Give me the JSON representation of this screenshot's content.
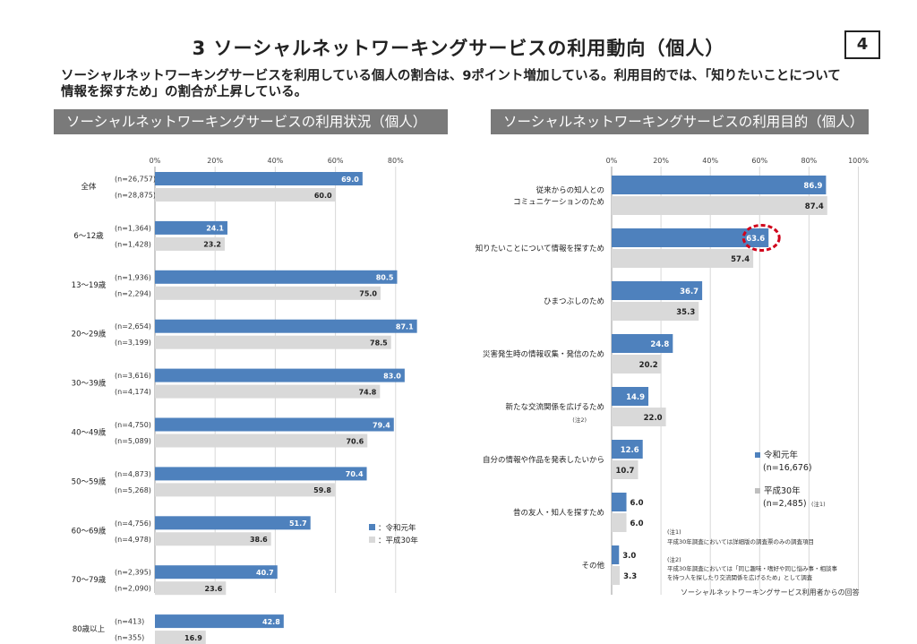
{
  "page": {
    "title": "3 ソーシャルネットワーキングサービスの利用動向（個人）",
    "page_number": "4",
    "summary_line1": "ソーシャルネットワーキングサービスを利用している個人の割合は、9ポイント増加している。利用目的では、「知りたいことについて",
    "summary_line2": "情報を探すため」の割合が上昇している。"
  },
  "colors": {
    "series_reiwa": "#4e81bd",
    "series_heisei": "#d9d9d9",
    "highlight": "#d0021b"
  },
  "chart_data": [
    {
      "type": "bar",
      "title": "ソーシャルネットワーキングサービスの利用状況（個人）",
      "orientation": "horizontal",
      "xlim": [
        0,
        90
      ],
      "x_ticks": [
        "0%",
        "20%",
        "40%",
        "60%",
        "80%"
      ],
      "grid": true,
      "legend_position": "bottom-right",
      "categories": [
        "全体",
        "6～12歳",
        "13～19歳",
        "20～29歳",
        "30～39歳",
        "40～49歳",
        "50～59歳",
        "60～69歳",
        "70～79歳",
        "80歳以上"
      ],
      "series": [
        {
          "name": "：令和元年",
          "values": [
            69.0,
            24.1,
            80.5,
            87.1,
            83.0,
            79.4,
            70.4,
            51.7,
            40.7,
            42.8
          ],
          "n": [
            "(n=26,757)",
            "(n=1,364)",
            "(n=1,936)",
            "(n=2,654)",
            "(n=3,616)",
            "(n=4,750)",
            "(n=4,873)",
            "(n=4,756)",
            "(n=2,395)",
            "(n=413)"
          ]
        },
        {
          "name": "：平成30年",
          "values": [
            60.0,
            23.2,
            75.0,
            78.5,
            74.8,
            70.6,
            59.8,
            38.6,
            23.6,
            16.9
          ],
          "n": [
            "(n=28,875)",
            "(n=1,428)",
            "(n=2,294)",
            "(n=3,199)",
            "(n=4,174)",
            "(n=5,089)",
            "(n=5,268)",
            "(n=4,978)",
            "(n=2,090)",
            "(n=355)"
          ]
        }
      ]
    },
    {
      "type": "bar",
      "title": "ソーシャルネットワーキングサービスの利用目的（個人）",
      "orientation": "horizontal",
      "xlim": [
        0,
        100
      ],
      "x_ticks": [
        "0%",
        "20%",
        "40%",
        "60%",
        "80%",
        "100%"
      ],
      "grid": true,
      "legend_position": "right",
      "categories": [
        [
          "従来からの知人との",
          "コミュニケーションのため"
        ],
        [
          "知りたいことについて情報を探すため"
        ],
        [
          "ひまつぶしのため"
        ],
        [
          "災害発生時の情報収集・発信のため"
        ],
        [
          "新たな交流関係を広げるため"
        ],
        [
          "自分の情報や作品を発表したいから"
        ],
        [
          "昔の友人・知人を探すため"
        ],
        [
          "その他"
        ]
      ],
      "category_notes": [
        "",
        "",
        "",
        "",
        "(注2)",
        "",
        "",
        ""
      ],
      "highlighted_value": "63.6",
      "series": [
        {
          "name": "令和元年",
          "n": "(n=16,676)",
          "values": [
            86.9,
            63.6,
            36.7,
            24.8,
            14.9,
            12.6,
            6.0,
            3.0
          ]
        },
        {
          "name": "平成30年",
          "n": "(n=2,485)",
          "note": "(注1)",
          "values": [
            87.4,
            57.4,
            35.3,
            20.2,
            22.0,
            10.7,
            6.0,
            3.3
          ]
        }
      ],
      "footnotes": [
        "(注1)",
        "平成30年調査においては詳細版の調査票のみの調査項目",
        "(注2)",
        "平成30年調査においては「同じ趣味・嗜好や同じ悩み事・相談事",
        "を持つ人を探したり交流関係を広げるため」として調査",
        "ソーシャルネットワーキングサービス利用者からの回答"
      ]
    }
  ]
}
